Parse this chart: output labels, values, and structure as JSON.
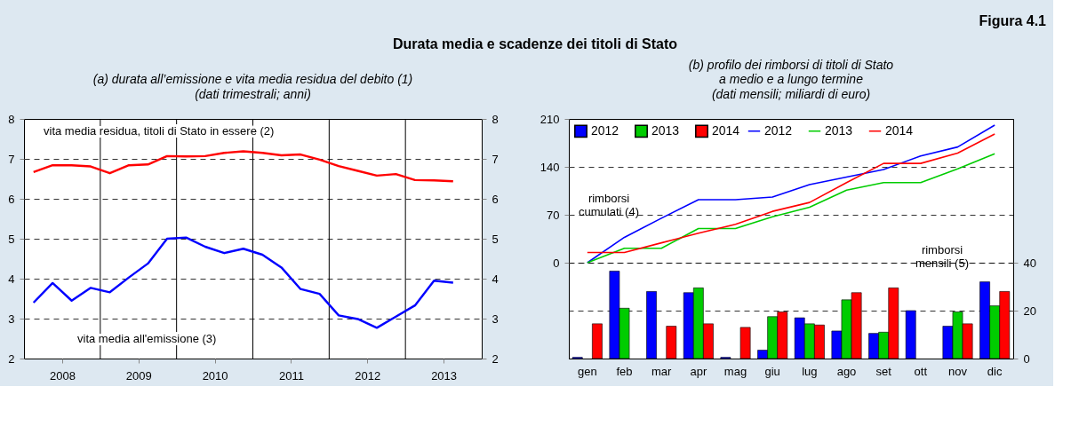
{
  "chart_data": [
    {
      "type": "line",
      "title": "(a) durata all’emissione e vita media residua del debito (1)",
      "subtitle": "(dati trimestrali; anni)",
      "annotations": [
        "Durata media e scadenze dei titoli di Stato",
        "Figura 4.1"
      ],
      "x": [
        2008.125,
        2008.375,
        2008.625,
        2008.875,
        2009.125,
        2009.375,
        2009.625,
        2009.875,
        2010.125,
        2010.375,
        2010.625,
        2010.875,
        2011.125,
        2011.375,
        2011.625,
        2011.875,
        2012.125,
        2012.375,
        2012.625,
        2012.875,
        2013.125,
        2013.375,
        2013.625
      ],
      "xlim": [
        2008,
        2014
      ],
      "xticks": [
        {
          "value": 2008.5,
          "label": "2008"
        },
        {
          "value": 2009.5,
          "label": "2009"
        },
        {
          "value": 2010.5,
          "label": "2010"
        },
        {
          "value": 2011.5,
          "label": "2011"
        },
        {
          "value": 2012.5,
          "label": "2012"
        },
        {
          "value": 2013.5,
          "label": "2013"
        }
      ],
      "ylim": [
        2,
        8
      ],
      "yticks": [
        2,
        3,
        4,
        5,
        6,
        7,
        8
      ],
      "y2lim": [
        2,
        8
      ],
      "y2ticks": [
        2,
        3,
        4,
        5,
        6,
        7,
        8
      ],
      "grid": "y",
      "ref_lines": [
        {
          "axis": "x",
          "value": 2009,
          "color": "#000000"
        },
        {
          "axis": "x",
          "value": 2010,
          "color": "#000000"
        },
        {
          "axis": "x",
          "value": 2011,
          "color": "#000000"
        },
        {
          "axis": "x",
          "value": 2012,
          "color": "#000000"
        },
        {
          "axis": "x",
          "value": 2013,
          "color": "#000000"
        }
      ],
      "series": [
        {
          "name": "vita media residua, titoli di Stato in essere (2)",
          "color": "#ff0000",
          "values": [
            6.67,
            6.84,
            6.84,
            6.81,
            6.64,
            6.84,
            6.86,
            7.07,
            7.06,
            7.07,
            7.15,
            7.19,
            7.15,
            7.09,
            7.11,
            6.98,
            6.82,
            6.7,
            6.58,
            6.62,
            6.47,
            6.46,
            6.44
          ]
        },
        {
          "name": "vita media all'emissione (3)",
          "color": "#0000ff",
          "values": [
            3.4,
            3.89,
            3.45,
            3.77,
            3.66,
            4.03,
            4.38,
            5.0,
            5.03,
            4.8,
            4.64,
            4.75,
            4.6,
            4.28,
            3.74,
            3.62,
            3.08,
            2.99,
            2.77,
            3.05,
            3.33,
            3.95,
            3.9
          ]
        }
      ]
    },
    {
      "type": "bar",
      "title": "(b) profilo dei rimborsi di titoli di Stato a medio e a lungo termine",
      "subtitle": "(dati mensili; miliardi di euro)",
      "annotations": [
        "rimborsi cumulati (4)",
        "rimborsi mensili (5)"
      ],
      "categories": [
        "gen",
        "feb",
        "mar",
        "apr",
        "mag",
        "giu",
        "lug",
        "ago",
        "set",
        "ott",
        "nov",
        "dic"
      ],
      "ylim": [
        -140,
        210
      ],
      "yticks": [
        0,
        70,
        140,
        210
      ],
      "y2lim": [
        0,
        100
      ],
      "y2ticks": [
        0,
        20,
        40
      ],
      "grid": "y",
      "legend": "top left",
      "series": [
        {
          "name": "2012",
          "type": "bar",
          "axis": "y2",
          "color": "#0000ff",
          "values": [
            0.5,
            36.5,
            28,
            27.5,
            0.5,
            3.5,
            17,
            11.5,
            10.5,
            20,
            13.5,
            32
          ]
        },
        {
          "name": "2013",
          "type": "bar",
          "axis": "y2",
          "color": "#00cc00",
          "values": [
            null,
            21,
            null,
            29.5,
            null,
            17.5,
            14.5,
            24.5,
            11,
            null,
            19.5,
            22
          ]
        },
        {
          "name": "2014",
          "type": "bar",
          "axis": "y2",
          "color": "#ff0000",
          "values": [
            14.5,
            null,
            13.5,
            14.5,
            13,
            19.5,
            14,
            27.5,
            29.5,
            null,
            14.5,
            28
          ]
        },
        {
          "name": "2012",
          "type": "line",
          "color": "#0000ff",
          "values": [
            0,
            37,
            65,
            92,
            92,
            96,
            114,
            125,
            136,
            156,
            169,
            201
          ]
        },
        {
          "name": "2013",
          "type": "line",
          "color": "#00cc00",
          "values": [
            0,
            21,
            21,
            50,
            50,
            67,
            81,
            106,
            117,
            117,
            137,
            159
          ]
        },
        {
          "name": "2014",
          "type": "line",
          "color": "#ff0000",
          "values": [
            15,
            15,
            29,
            43,
            56,
            75,
            88,
            117,
            145,
            145,
            160,
            188
          ]
        }
      ]
    }
  ]
}
